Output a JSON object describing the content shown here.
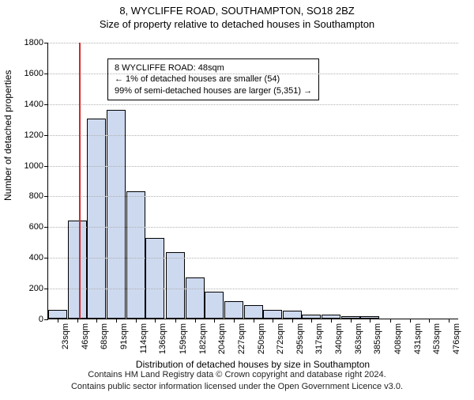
{
  "title": {
    "address": "8, WYCLIFFE ROAD, SOUTHAMPTON, SO18 2BZ",
    "subtitle": "Size of property relative to detached houses in Southampton"
  },
  "chart": {
    "type": "histogram",
    "ylabel": "Number of detached properties",
    "xlabel": "Distribution of detached houses by size in Southampton",
    "ylim": [
      0,
      1800
    ],
    "ytick_step": 200,
    "yticks": [
      0,
      200,
      400,
      600,
      800,
      1000,
      1200,
      1400,
      1600,
      1800
    ],
    "xticks": [
      23,
      46,
      68,
      91,
      114,
      136,
      159,
      182,
      204,
      227,
      250,
      272,
      295,
      317,
      340,
      363,
      385,
      408,
      431,
      453,
      476
    ],
    "xtick_unit": "sqm",
    "bar_color": "#cdd9ef",
    "bar_border": "#000000",
    "grid_color": "#b0b0b0",
    "background_color": "#ffffff",
    "ref_line_color": "#d62728",
    "ref_line_value": 48,
    "xrange": [
      12,
      488
    ],
    "bars": [
      {
        "x": 23,
        "y": 55
      },
      {
        "x": 46,
        "y": 640
      },
      {
        "x": 68,
        "y": 1300
      },
      {
        "x": 91,
        "y": 1360
      },
      {
        "x": 114,
        "y": 830
      },
      {
        "x": 136,
        "y": 525
      },
      {
        "x": 159,
        "y": 430
      },
      {
        "x": 182,
        "y": 270
      },
      {
        "x": 204,
        "y": 175
      },
      {
        "x": 227,
        "y": 115
      },
      {
        "x": 250,
        "y": 85
      },
      {
        "x": 272,
        "y": 55
      },
      {
        "x": 295,
        "y": 50
      },
      {
        "x": 317,
        "y": 25
      },
      {
        "x": 340,
        "y": 25
      },
      {
        "x": 363,
        "y": 15
      },
      {
        "x": 385,
        "y": 15
      },
      {
        "x": 408,
        "y": 0
      },
      {
        "x": 431,
        "y": 0
      },
      {
        "x": 453,
        "y": 0
      },
      {
        "x": 476,
        "y": 0
      }
    ],
    "bar_width_units": 22
  },
  "legend": {
    "line1": "8 WYCLIFFE ROAD: 48sqm",
    "line2": "← 1% of detached houses are smaller (54)",
    "line3": "99% of semi-detached houses are larger (5,351) →"
  },
  "footer": {
    "line1": "Contains HM Land Registry data © Crown copyright and database right 2024.",
    "line2": "Contains public sector information licensed under the Open Government Licence v3.0."
  }
}
